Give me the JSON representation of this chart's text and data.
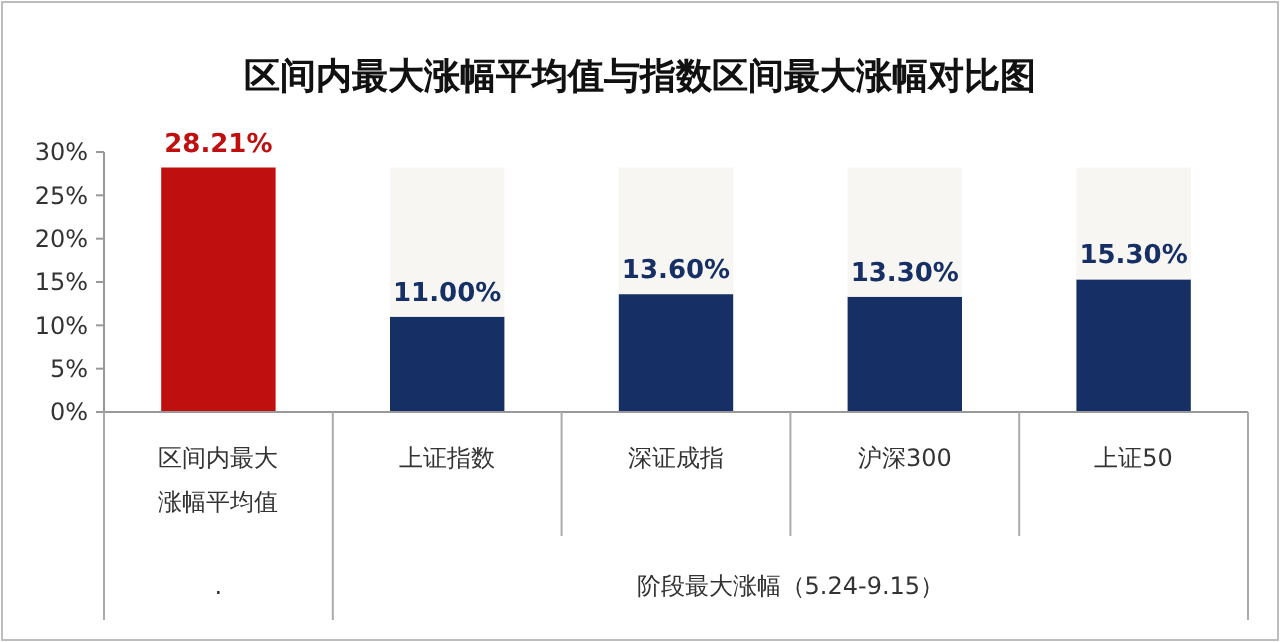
{
  "chart_data": {
    "type": "bar",
    "title": "区间内最大涨幅平均值与指数区间最大涨幅对比图",
    "categories": [
      "区间内最大涨幅平均值",
      "上证指数",
      "深证成指",
      "沪深300",
      "上证50"
    ],
    "stacked": true,
    "series": [
      {
        "colors": [
          "#c00f0f",
          "#163066",
          "#163066",
          "#163066",
          "#163066"
        ],
        "values": [
          28.21,
          11.0,
          13.6,
          13.3,
          15.3
        ],
        "value_labels": [
          "28.21%",
          "11.00%",
          "13.60%",
          "13.30%",
          "15.30%"
        ]
      },
      {
        "color": "#f8f6f3",
        "values": [
          null,
          17.2,
          14.6,
          14.9,
          12.9
        ]
      }
    ],
    "ylim": [
      0,
      30
    ],
    "yticks": [
      {
        "value": 0,
        "label": "0%"
      },
      {
        "value": 5,
        "label": "5%"
      },
      {
        "value": 10,
        "label": "10%"
      },
      {
        "value": 15,
        "label": "15%"
      },
      {
        "value": 20,
        "label": "20%"
      },
      {
        "value": 25,
        "label": "25%"
      },
      {
        "value": 30,
        "label": "30%"
      }
    ],
    "annotations": [
      ".",
      "阶段最大涨幅（5.24-9.15）"
    ],
    "grid": false
  }
}
